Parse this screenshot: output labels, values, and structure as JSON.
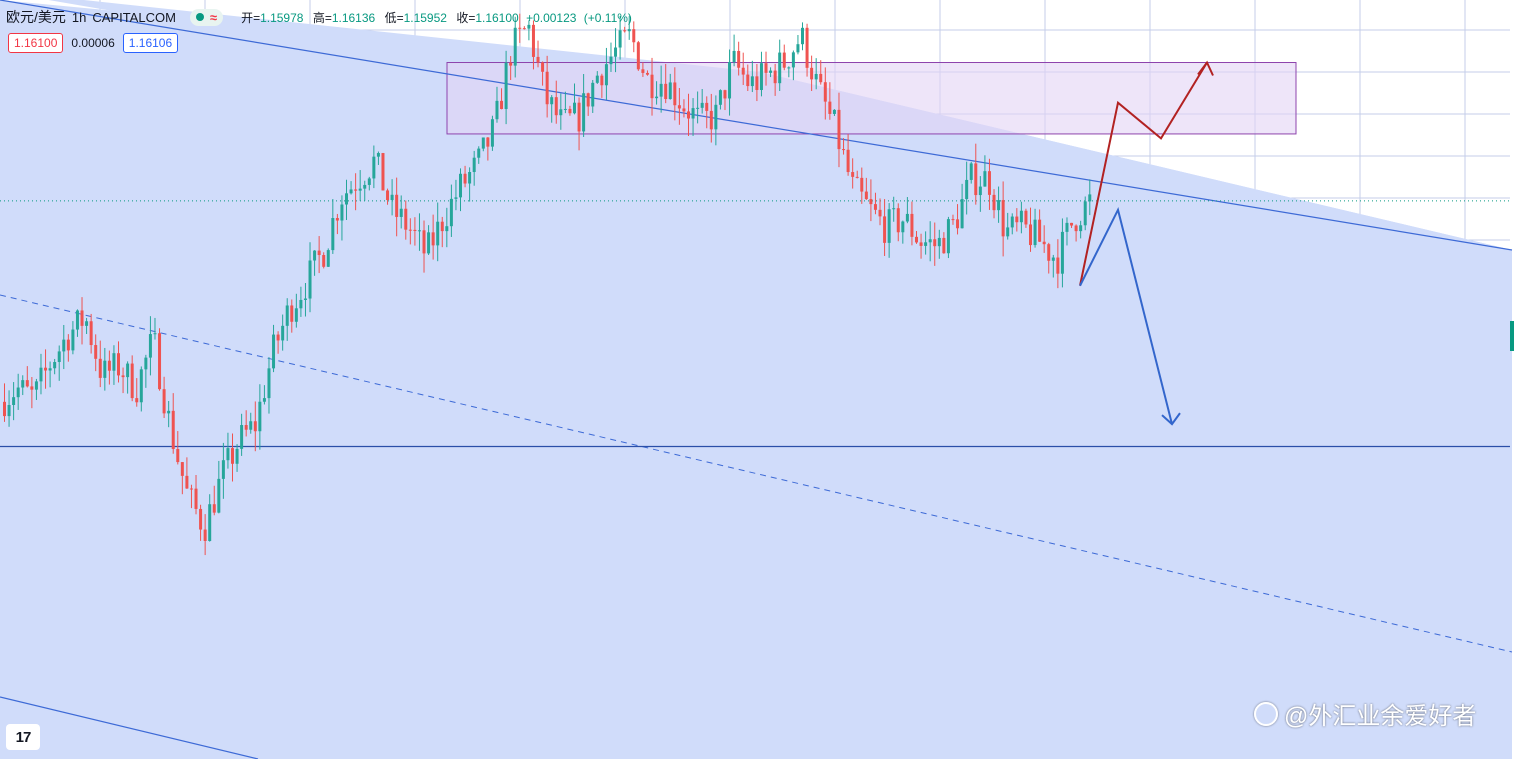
{
  "header": {
    "symbol": "欧元/美元",
    "interval": "1h",
    "exchange": "CAPITALCOM",
    "approx_symbol": "≈",
    "ohlc": {
      "open_label": "开=",
      "open": "1.15978",
      "high_label": "高=",
      "high": "1.16136",
      "low_label": "低=",
      "low": "1.15952",
      "close_label": "收=",
      "close": "1.16100",
      "change": "+0.00123",
      "change_pct": "(+0.11%)"
    }
  },
  "quotes": {
    "sell": "1.16100",
    "spread": "0.00006",
    "buy": "1.16106"
  },
  "logo_text": "17",
  "watermark": "@外汇业余爱好者",
  "colors": {
    "background": "#ffffff",
    "channel_fill": "#d0dcfa",
    "up_candle": "#26a69a",
    "down_candle": "#ef5350",
    "box_fill": "#e3d3f5",
    "box_border": "#8e44ad",
    "bull_path": "#b22222",
    "bear_path": "#3366cc",
    "trend_line": "#2962ff"
  },
  "chart_data": {
    "type": "candlestick",
    "symbol": "EUR/USD",
    "interval": "1h",
    "ylim": [
      1.1485,
      1.1655
    ],
    "grid": true,
    "last_price": 1.161,
    "horizontal_support": 1.1555,
    "range_box": {
      "top": 1.1641,
      "bottom": 1.1625
    },
    "scenarios": [
      {
        "name": "bullish",
        "path": [
          1.1591,
          1.1632,
          1.1624,
          1.1641
        ]
      },
      {
        "name": "bearish",
        "path": [
          1.1591,
          1.1608,
          1.156
        ]
      }
    ],
    "close_path": [
      1.1565,
      1.1568,
      1.1566,
      1.1574,
      1.158,
      1.1584,
      1.1571,
      1.1573,
      1.1568,
      1.1579,
      1.1559,
      1.1544,
      1.1537,
      1.1548,
      1.1556,
      1.156,
      1.1576,
      1.1586,
      1.1592,
      1.1599,
      1.1611,
      1.1615,
      1.1619,
      1.1608,
      1.1604,
      1.1598,
      1.1606,
      1.1613,
      1.1618,
      1.1626,
      1.1644,
      1.1649,
      1.1633,
      1.1627,
      1.1629,
      1.1638,
      1.1643,
      1.1647,
      1.1637,
      1.1637,
      1.1632,
      1.1628,
      1.1629,
      1.1641,
      1.1636,
      1.1638,
      1.1641,
      1.1647,
      1.1635,
      1.1626,
      1.1613,
      1.1608,
      1.1604,
      1.1606,
      1.1601,
      1.16,
      1.1605,
      1.1615,
      1.1615,
      1.1603,
      1.1604,
      1.1601,
      1.1597,
      1.1606,
      1.161
    ]
  }
}
